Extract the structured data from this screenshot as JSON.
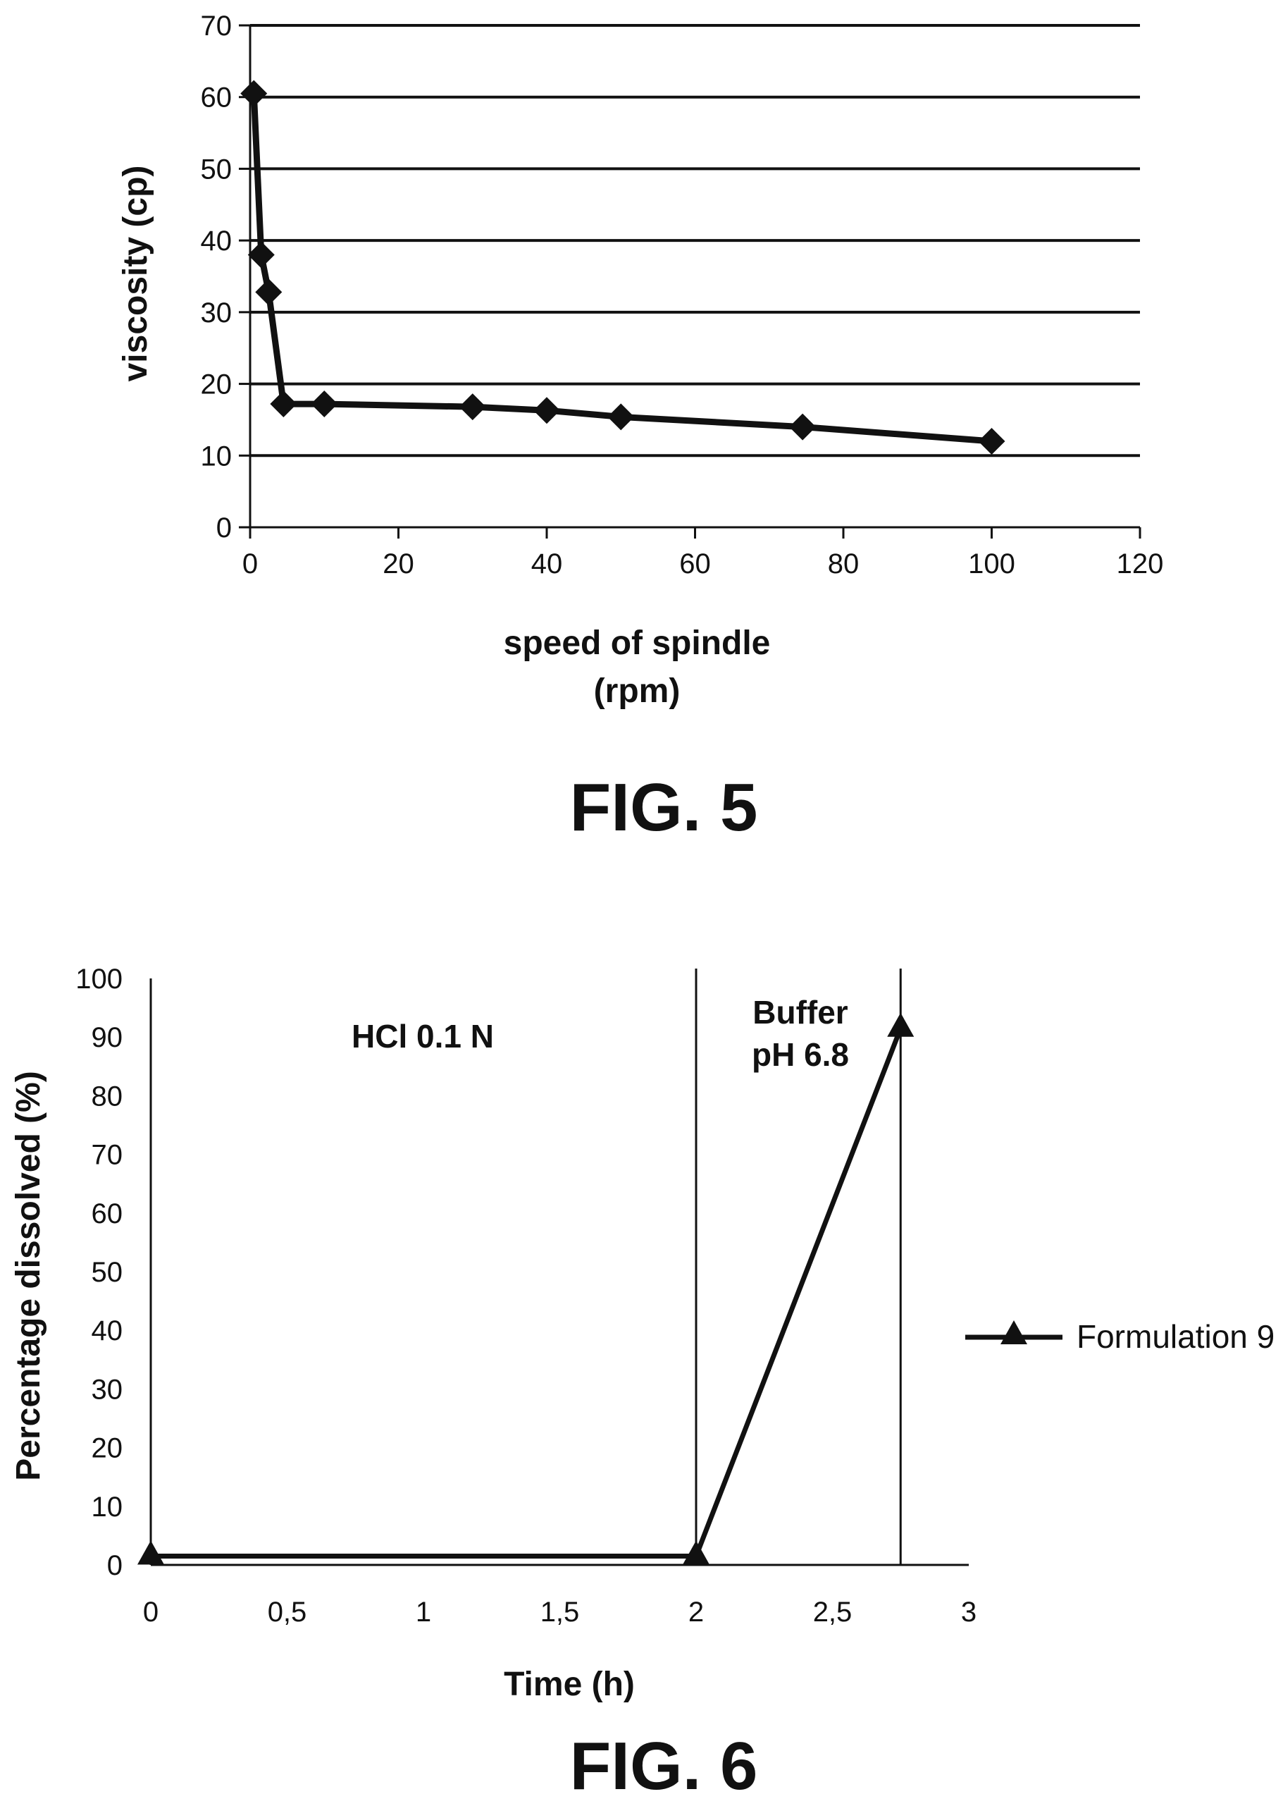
{
  "figures": [
    {
      "caption": "FIG. 5"
    },
    {
      "caption": "FIG. 6"
    }
  ],
  "chart_data": [
    {
      "type": "line",
      "caption": "FIG. 5",
      "xlabel": [
        "speed of spindle",
        "(rpm)"
      ],
      "ylabel": "viscosity (cp)",
      "xlim": [
        0,
        120
      ],
      "ylim": [
        0,
        70
      ],
      "x_ticks": [
        "0",
        "20",
        "40",
        "60",
        "80",
        "100",
        "120"
      ],
      "y_ticks": [
        "0",
        "10",
        "20",
        "30",
        "40",
        "50",
        "60",
        "70"
      ],
      "grid": "horizontal",
      "marker": "diamond",
      "line_color": "#111111",
      "series": [
        {
          "x": [
            0.5,
            1.5,
            2.5,
            4.5,
            10,
            30,
            40,
            50,
            74.5,
            100
          ],
          "y": [
            60.5,
            38,
            32.8,
            17.2,
            17.2,
            16.8,
            16.3,
            15.4,
            14,
            12
          ]
        }
      ]
    },
    {
      "type": "line",
      "caption": "FIG. 6",
      "xlabel": "Time (h)",
      "ylabel": "Percentage dissolved (%)",
      "xlim": [
        0,
        3
      ],
      "ylim": [
        0,
        100
      ],
      "x_ticks": [
        "0",
        "0,5",
        "1",
        "1,5",
        "2",
        "2,5",
        "3"
      ],
      "y_ticks": [
        "0",
        "10",
        "20",
        "30",
        "40",
        "50",
        "60",
        "70",
        "80",
        "90",
        "100"
      ],
      "grid": "none",
      "marker": "triangle",
      "line_color": "#111111",
      "legend": {
        "position": "right",
        "entries": [
          "Formulation 9"
        ]
      },
      "vertical_lines_x": [
        2,
        2.75
      ],
      "regions": [
        {
          "label": [
            "HCl 0.1 N"
          ]
        },
        {
          "label": [
            "Buffer",
            "pH 6.8"
          ]
        }
      ],
      "series": [
        {
          "name": "Formulation 9",
          "x": [
            0,
            2,
            2.75
          ],
          "y": [
            1.5,
            1.5,
            91.5
          ]
        }
      ]
    }
  ]
}
